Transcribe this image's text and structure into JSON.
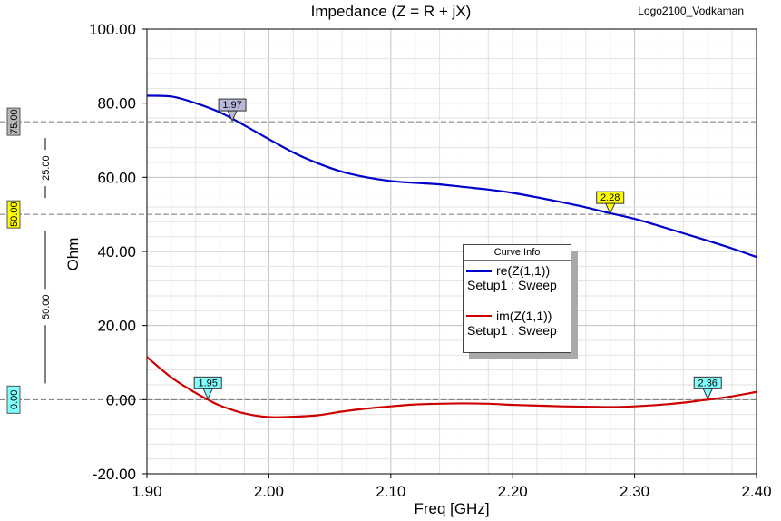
{
  "title": "Impedance (Z = R + jX)",
  "project_label": "Logo2100_Vodkaman",
  "chart_data": {
    "type": "line",
    "title": "Impedance (Z = R + jX)",
    "xlabel": "Freq [GHz]",
    "ylabel": "Ohm",
    "xlim": [
      1.9,
      2.4
    ],
    "ylim": [
      -20,
      100
    ],
    "x_ticks": [
      "1.90",
      "2.00",
      "2.10",
      "2.20",
      "2.30",
      "2.40"
    ],
    "y_ticks": [
      "100.00",
      "80.00",
      "60.00",
      "40.00",
      "20.00",
      "0.00",
      "-20.00"
    ],
    "grid": true,
    "series": [
      {
        "name": "re(Z(1,1))",
        "sub": "Setup1 : Sweep",
        "color": "#0000cc",
        "x": [
          1.9,
          1.92,
          1.94,
          1.96,
          1.98,
          2.0,
          2.02,
          2.04,
          2.06,
          2.08,
          2.1,
          2.12,
          2.14,
          2.16,
          2.18,
          2.2,
          2.22,
          2.24,
          2.26,
          2.28,
          2.3,
          2.32,
          2.34,
          2.36,
          2.38,
          2.4
        ],
        "y": [
          82,
          81.8,
          80,
          77.5,
          74,
          70.3,
          66.7,
          63.8,
          61.5,
          60,
          59,
          58.5,
          58.1,
          57.4,
          56.7,
          55.8,
          54.6,
          53.3,
          51.9,
          50.3,
          48.8,
          46.9,
          44.9,
          42.9,
          40.8,
          38.5
        ]
      },
      {
        "name": "im(Z(1,1))",
        "sub": "Setup1 : Sweep",
        "color": "#cc0000",
        "x": [
          1.9,
          1.92,
          1.94,
          1.95,
          1.96,
          1.98,
          2.0,
          2.02,
          2.04,
          2.06,
          2.08,
          2.1,
          2.12,
          2.14,
          2.16,
          2.18,
          2.2,
          2.22,
          2.24,
          2.26,
          2.28,
          2.3,
          2.32,
          2.34,
          2.36,
          2.38,
          2.4
        ],
        "y": [
          11.5,
          6,
          1.8,
          0,
          -1.6,
          -3.7,
          -4.7,
          -4.6,
          -4.2,
          -3.2,
          -2.4,
          -1.8,
          -1.3,
          -1.1,
          -1,
          -1.1,
          -1.4,
          -1.6,
          -1.8,
          -1.9,
          -2,
          -1.8,
          -1.4,
          -0.8,
          0,
          0.9,
          2.1
        ]
      }
    ],
    "markers": [
      {
        "label": "1.97",
        "x": 1.97,
        "y": 75,
        "color": "#b8b8d8"
      },
      {
        "label": "2.28",
        "x": 2.28,
        "y": 50,
        "color": "#ffff00"
      },
      {
        "label": "1.95",
        "x": 1.95,
        "y": 0,
        "color": "#80ffff"
      },
      {
        "label": "2.36",
        "x": 2.36,
        "y": 0,
        "color": "#80ffff"
      }
    ],
    "hlines": [
      {
        "y": 75,
        "label": "75.00",
        "color": "#b8b8b8"
      },
      {
        "y": 50,
        "label": "50.00",
        "color": "#ffff00"
      },
      {
        "y": 0,
        "label": "0.00",
        "color": "#80ffff"
      }
    ],
    "delta_labels": [
      {
        "label": "25.00",
        "y_from": 75,
        "y_to": 50
      },
      {
        "label": "50.00",
        "y_from": 50,
        "y_to": 0
      }
    ],
    "legend": {
      "title": "Curve Info",
      "placement": "right-center"
    }
  }
}
